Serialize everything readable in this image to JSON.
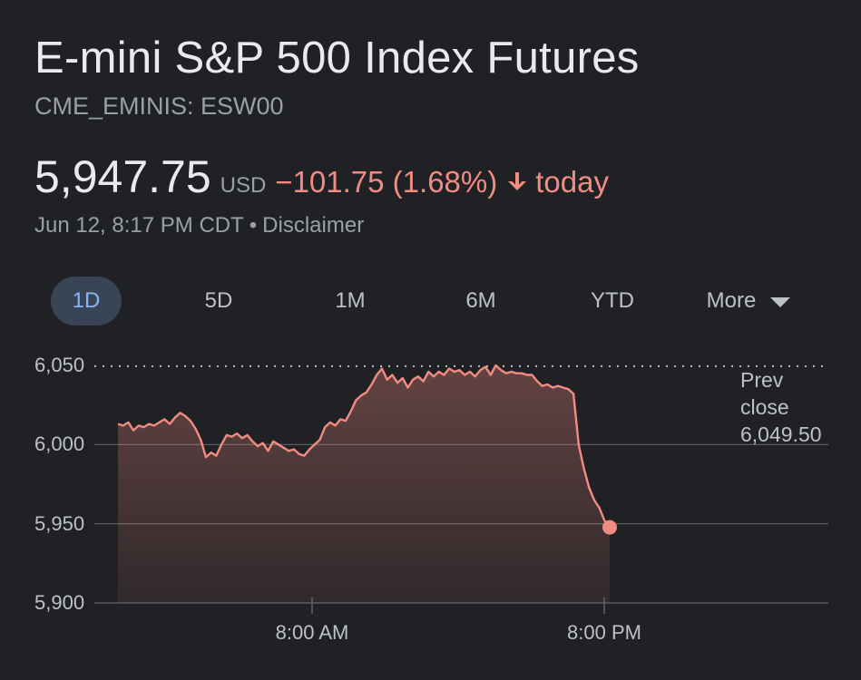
{
  "header": {
    "title": "E-mini S&P 500 Index Futures",
    "ticker": "CME_EMINIS: ESW00"
  },
  "quote": {
    "price": "5,947.75",
    "currency": "USD",
    "change": "−101.75 (1.68%)",
    "direction_icon": "arrow-down-icon",
    "period": "today",
    "timestamp": "Jun 12, 8:17 PM CDT",
    "separator": "•",
    "disclaimer": "Disclaimer"
  },
  "tabs": [
    {
      "label": "1D",
      "active": true
    },
    {
      "label": "5D",
      "active": false
    },
    {
      "label": "1M",
      "active": false
    },
    {
      "label": "6M",
      "active": false
    },
    {
      "label": "YTD",
      "active": false
    },
    {
      "label": "More",
      "active": false
    }
  ],
  "colors": {
    "background": "#202124",
    "negative": "#f28b82",
    "active_tab_bg": "#394457",
    "active_tab_text": "#8ab4f8",
    "grid": "#5f6368"
  },
  "chart_data": {
    "type": "area",
    "y_ticks": [
      "6,050",
      "6,000",
      "5,950",
      "5,900"
    ],
    "y_tick_values": [
      6050,
      6000,
      5950,
      5900
    ],
    "ylim": [
      5900,
      6050
    ],
    "x_ticks": [
      "8:00 AM",
      "8:00 PM"
    ],
    "prev_close_label": [
      "Prev",
      "close",
      "6,049.50"
    ],
    "prev_close": 6049.5,
    "last_value": 5947.75,
    "series": [
      {
        "values": [
          6013,
          6012,
          6014,
          6009,
          6012,
          6011,
          6013,
          6012,
          6014,
          6016,
          6013,
          6017,
          6020,
          6018,
          6015,
          6010,
          6003,
          5992,
          5995,
          5993,
          6000,
          6006,
          6005,
          6007,
          6004,
          6006,
          6002,
          5999,
          6001,
          5996,
          6002,
          6000,
          5998,
          5996,
          5997,
          5994,
          5993,
          5997,
          6000,
          6003,
          6011,
          6014,
          6012,
          6016,
          6015,
          6021,
          6028,
          6031,
          6033,
          6038,
          6044,
          6048,
          6041,
          6044,
          6039,
          6042,
          6036,
          6041,
          6043,
          6040,
          6046,
          6043,
          6046,
          6044,
          6048,
          6046,
          6047,
          6044,
          6046,
          6043,
          6047,
          6049,
          6044,
          6050,
          6047,
          6045,
          6046,
          6045,
          6045,
          6044,
          6044,
          6040,
          6037,
          6038,
          6036,
          6037,
          6036,
          6035,
          6032,
          6000,
          5985,
          5973,
          5965,
          5960,
          5952,
          5947.75
        ]
      }
    ]
  }
}
